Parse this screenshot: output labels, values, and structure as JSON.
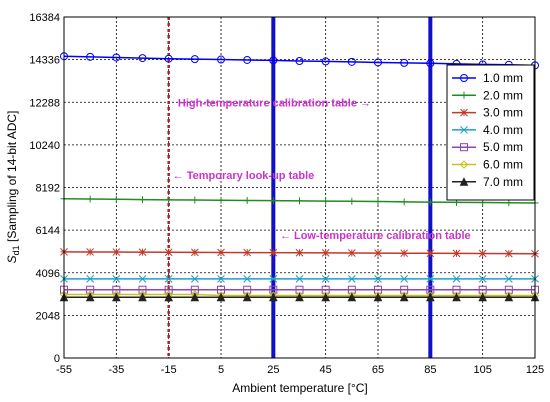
{
  "chart_data": {
    "type": "line",
    "xlabel": "Ambient temperature [°C]",
    "ylabel_main": "S",
    "ylabel_sub": "d1",
    "ylabel_rest": " [Sampling of 14-bit ADC]",
    "xlim": [
      -55,
      125
    ],
    "ylim": [
      0,
      16384
    ],
    "xticks": [
      -55,
      -35,
      -15,
      5,
      25,
      45,
      65,
      85,
      105,
      125
    ],
    "yticks": [
      0,
      2048,
      4096,
      6144,
      8192,
      10240,
      12288,
      14336,
      16384
    ],
    "grid": true,
    "legend_position": "top-right",
    "series": [
      {
        "name": "1.0 mm",
        "color": "#0000ff",
        "marker": "circle",
        "x": [
          -55,
          -45,
          -35,
          -25,
          -15,
          -5,
          5,
          15,
          25,
          35,
          45,
          55,
          65,
          75,
          85,
          95,
          105,
          115,
          125
        ],
        "y": [
          14500,
          14470,
          14440,
          14410,
          14380,
          14360,
          14340,
          14320,
          14300,
          14270,
          14250,
          14230,
          14200,
          14180,
          14160,
          14130,
          14110,
          14090,
          14060
        ]
      },
      {
        "name": "2.0 mm",
        "color": "#228b22",
        "marker": "plus",
        "x": [
          -55,
          -45,
          -35,
          -25,
          -15,
          -5,
          5,
          15,
          25,
          35,
          45,
          55,
          65,
          75,
          85,
          95,
          105,
          115,
          125
        ],
        "y": [
          7650,
          7640,
          7630,
          7610,
          7600,
          7590,
          7580,
          7570,
          7560,
          7550,
          7540,
          7530,
          7520,
          7500,
          7490,
          7480,
          7470,
          7460,
          7450
        ]
      },
      {
        "name": "3.0 mm",
        "color": "#c0392b",
        "marker": "star",
        "x": [
          -55,
          -45,
          -35,
          -25,
          -15,
          -5,
          5,
          15,
          25,
          35,
          45,
          55,
          65,
          75,
          85,
          95,
          105,
          115,
          125
        ],
        "y": [
          5100,
          5095,
          5090,
          5085,
          5080,
          5075,
          5070,
          5065,
          5060,
          5055,
          5050,
          5045,
          5040,
          5035,
          5030,
          5025,
          5020,
          5015,
          5010
        ]
      },
      {
        "name": "4.0 mm",
        "color": "#1f9fbf",
        "marker": "x",
        "x": [
          -55,
          -45,
          -35,
          -25,
          -15,
          -5,
          5,
          15,
          25,
          35,
          45,
          55,
          65,
          75,
          85,
          95,
          105,
          115,
          125
        ],
        "y": [
          3800,
          3800,
          3800,
          3800,
          3800,
          3800,
          3800,
          3800,
          3800,
          3800,
          3800,
          3800,
          3800,
          3800,
          3800,
          3800,
          3800,
          3800,
          3800
        ]
      },
      {
        "name": "5.0 mm",
        "color": "#8e44ad",
        "marker": "square",
        "x": [
          -55,
          -45,
          -35,
          -25,
          -15,
          -5,
          5,
          15,
          25,
          35,
          45,
          55,
          65,
          75,
          85,
          95,
          105,
          115,
          125
        ],
        "y": [
          3280,
          3280,
          3280,
          3280,
          3280,
          3280,
          3280,
          3280,
          3280,
          3280,
          3280,
          3280,
          3280,
          3280,
          3280,
          3280,
          3280,
          3280,
          3280
        ]
      },
      {
        "name": "6.0 mm",
        "color": "#c9c21a",
        "marker": "diamond",
        "x": [
          -55,
          -45,
          -35,
          -25,
          -15,
          -5,
          5,
          15,
          25,
          35,
          45,
          55,
          65,
          75,
          85,
          95,
          105,
          115,
          125
        ],
        "y": [
          3050,
          3050,
          3050,
          3050,
          3050,
          3050,
          3000,
          3000,
          3000,
          3000,
          3000,
          3000,
          3000,
          3000,
          3000,
          3000,
          3000,
          3000,
          3000
        ]
      },
      {
        "name": "7.0 mm",
        "color": "#222222",
        "marker": "triangle",
        "x": [
          -55,
          -45,
          -35,
          -25,
          -15,
          -5,
          5,
          15,
          25,
          35,
          45,
          55,
          65,
          75,
          85,
          95,
          105,
          115,
          125
        ],
        "y": [
          2920,
          2920,
          2920,
          2920,
          2920,
          2920,
          2920,
          2920,
          2920,
          2920,
          2920,
          2920,
          2920,
          2920,
          2920,
          2920,
          2920,
          2920,
          2920
        ]
      }
    ],
    "vertical_lines": [
      {
        "x": -15,
        "color": "#b22222",
        "style": "dotted"
      },
      {
        "x": 25,
        "color": "#1010c8",
        "style": "solid"
      },
      {
        "x": 85,
        "color": "#1010c8",
        "style": "solid"
      }
    ],
    "annotations": [
      {
        "text": "High-temperature calibration table →",
        "x": -13,
        "y": 12288,
        "color": "#cc33cc"
      },
      {
        "text": "← Temporary look-up table",
        "x": -15,
        "y": 8800,
        "color": "#cc33cc"
      },
      {
        "text": "← Low-temperature calibration table",
        "x": 26,
        "y": 5900,
        "color": "#cc33cc"
      }
    ]
  }
}
